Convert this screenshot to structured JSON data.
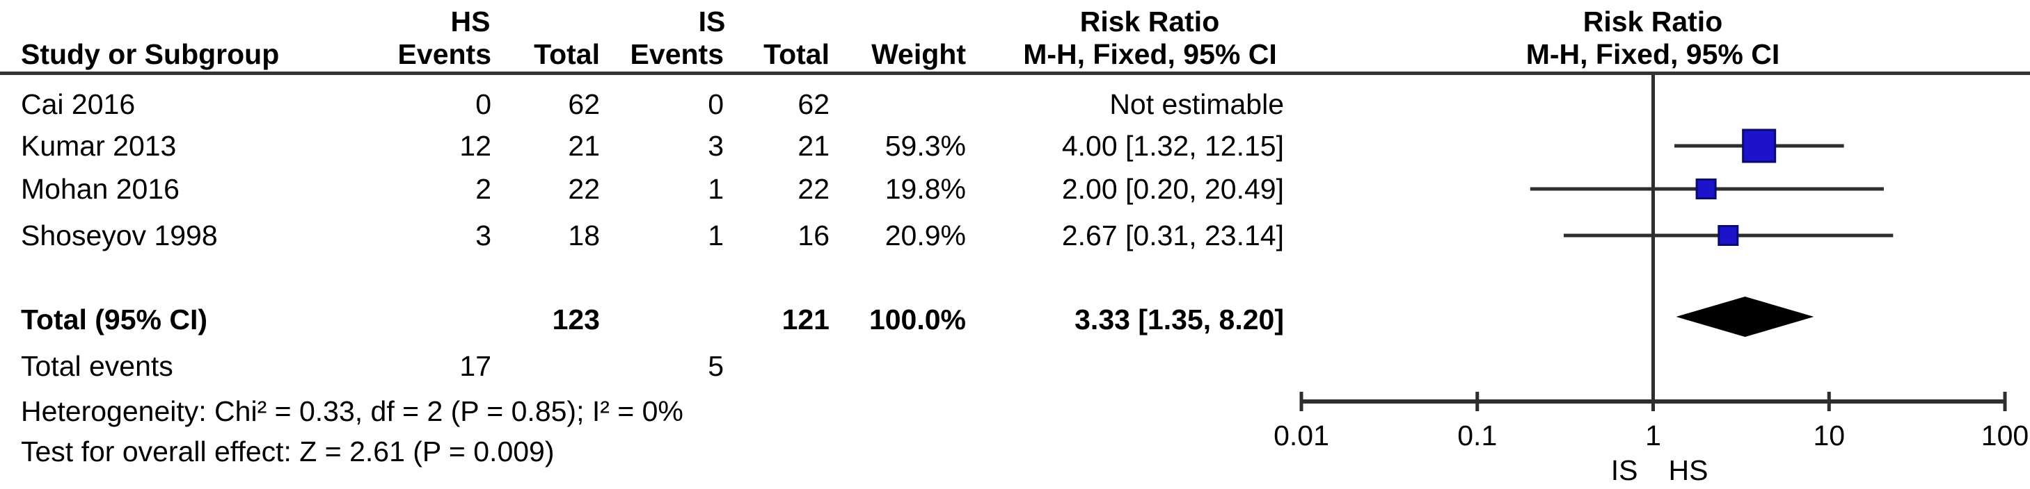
{
  "figure": {
    "group1_label": "HS",
    "group2_label": "IS",
    "risk_ratio_title": "Risk Ratio",
    "mh_subtitle": "M-H, Fixed, 95% CI",
    "plot_title": "Risk Ratio",
    "plot_subtitle": "M-H, Fixed, 95% CI"
  },
  "columns": {
    "study": "Study or Subgroup",
    "events": "Events",
    "total": "Total",
    "events2": "Events",
    "total2": "Total",
    "weight": "Weight"
  },
  "table": {
    "rows": [
      {
        "study": "Cai 2016",
        "hs_events": "0",
        "hs_total": "62",
        "is_events": "0",
        "is_total": "62",
        "weight": "",
        "rr_text": "Not estimable"
      },
      {
        "study": "Kumar 2013",
        "hs_events": "12",
        "hs_total": "21",
        "is_events": "3",
        "is_total": "21",
        "weight": "59.3%",
        "rr_text": "4.00 [1.32, 12.15]"
      },
      {
        "study": "Mohan 2016",
        "hs_events": "2",
        "hs_total": "22",
        "is_events": "1",
        "is_total": "22",
        "weight": "19.8%",
        "rr_text": "2.00 [0.20, 20.49]"
      },
      {
        "study": "Shoseyov 1998",
        "hs_events": "3",
        "hs_total": "18",
        "is_events": "1",
        "is_total": "16",
        "weight": "20.9%",
        "rr_text": "2.67 [0.31, 23.14]"
      }
    ],
    "total_row": {
      "label": "Total (95% CI)",
      "hs_total": "123",
      "is_total": "121",
      "weight": "100.0%",
      "rr_text": "3.33 [1.35, 8.20]"
    },
    "total_events": {
      "label": "Total events",
      "hs": "17",
      "is": "5"
    },
    "heterogeneity": "Heterogeneity: Chi² = 0.33, df = 2 (P = 0.85); I² = 0%",
    "overall_effect": "Test for overall effect: Z = 2.61 (P = 0.009)"
  },
  "chart_data": {
    "type": "forest",
    "scale": "log10",
    "effect_measure": "Risk Ratio (M-H, Fixed, 95% CI)",
    "axis_ticks": [
      0.01,
      0.1,
      1,
      10,
      100
    ],
    "axis_range": [
      0.01,
      100
    ],
    "null_line": 1,
    "favours_left": "IS",
    "favours_right": "HS",
    "studies": [
      {
        "name": "Cai 2016",
        "estimable": false,
        "rr": null,
        "ci_low": null,
        "ci_high": null,
        "weight_pct": null
      },
      {
        "name": "Kumar 2013",
        "estimable": true,
        "rr": 4.0,
        "ci_low": 1.32,
        "ci_high": 12.15,
        "weight_pct": 59.3
      },
      {
        "name": "Mohan 2016",
        "estimable": true,
        "rr": 2.0,
        "ci_low": 0.2,
        "ci_high": 20.49,
        "weight_pct": 19.8
      },
      {
        "name": "Shoseyov 1998",
        "estimable": true,
        "rr": 2.67,
        "ci_low": 0.31,
        "ci_high": 23.14,
        "weight_pct": 20.9
      }
    ],
    "total": {
      "rr": 3.33,
      "ci_low": 1.35,
      "ci_high": 8.2
    },
    "colors": {
      "square_fill": "#1c13cb",
      "square_border": "#0a0a70",
      "diamond": "#000000",
      "line": "#2e2e2e"
    }
  }
}
